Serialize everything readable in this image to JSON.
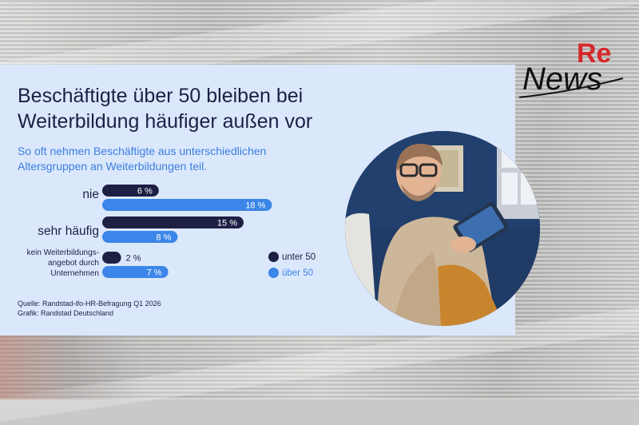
{
  "chart_data": {
    "type": "bar",
    "orientation": "horizontal",
    "title": "Beschäftigte über 50 bleiben bei Weiterbildung häufiger außen vor",
    "subtitle": "So oft nehmen Beschäftigte aus unterschiedlichen Altersgruppen an Weiterbildungen teil.",
    "categories": [
      "nie",
      "sehr häufig",
      "kein Weiterbildungs-angebot durch Unternehmen"
    ],
    "category_lines": [
      [
        "nie"
      ],
      [
        "sehr häufig"
      ],
      [
        "kein Weiterbildungs-",
        "angebot durch",
        "Unternehmen"
      ]
    ],
    "series": [
      {
        "name": "unter 50",
        "values": [
          6,
          15,
          2
        ],
        "labels": [
          "6 %",
          "15 %",
          "2 %"
        ],
        "color": "#1d1f45"
      },
      {
        "name": "über 50",
        "values": [
          18,
          8,
          7
        ],
        "labels": [
          "18 %",
          "8 %",
          "7 %"
        ],
        "color": "#3b86e8"
      }
    ],
    "legend_position": "right",
    "grid": false
  },
  "source": {
    "quelle": "Quelle: Randstad-ifo-HR-Befragung Q1 2026",
    "grafik": "Grafik: Randstad Deutschland"
  },
  "logo": {
    "top": "Re",
    "bottom": "News"
  },
  "colors": {
    "card": "#dbe8fb",
    "title": "#1d1f45",
    "subtitle": "#3b7de0",
    "logo_red": "#d6282c"
  }
}
